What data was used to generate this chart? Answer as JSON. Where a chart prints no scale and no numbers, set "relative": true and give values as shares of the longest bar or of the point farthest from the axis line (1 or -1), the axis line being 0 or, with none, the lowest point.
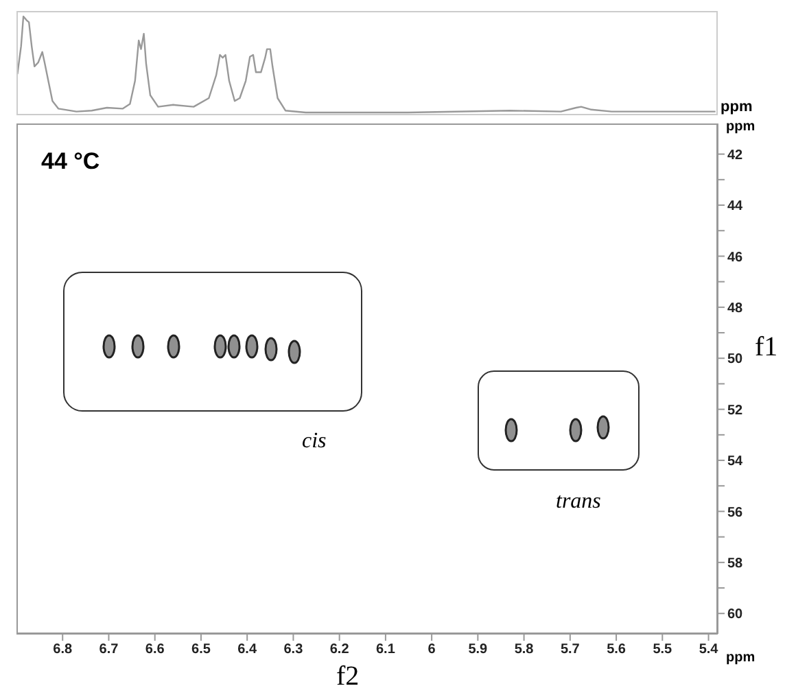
{
  "chart_data": [
    {
      "type": "line",
      "relative": true,
      "tick_labels": false,
      "xlim": [
        6.9,
        5.38
      ],
      "annotations": [
        "ppm"
      ],
      "series": [
        {
          "color": "#999999",
          "x": [
            6.898,
            6.89,
            6.885,
            6.878,
            6.873,
            6.867,
            6.861,
            6.853,
            6.844,
            6.839,
            6.831,
            6.822,
            6.809,
            6.77,
            6.737,
            6.704,
            6.67,
            6.654,
            6.643,
            6.635,
            6.63,
            6.624,
            6.619,
            6.61,
            6.593,
            6.56,
            6.516,
            6.483,
            6.467,
            6.459,
            6.453,
            6.447,
            6.439,
            6.427,
            6.416,
            6.403,
            6.394,
            6.387,
            6.381,
            6.37,
            6.361,
            6.357,
            6.35,
            6.345,
            6.334,
            6.317,
            6.273,
            6.051,
            5.83,
            5.72,
            5.687,
            5.676,
            5.654,
            5.61,
            5.385
          ],
          "values": [
            0.4,
            0.69,
            1,
            0.96,
            0.94,
            0.69,
            0.48,
            0.52,
            0.63,
            0.52,
            0.33,
            0.12,
            0.04,
            0.01,
            0.02,
            0.05,
            0.04,
            0.09,
            0.33,
            0.75,
            0.66,
            0.82,
            0.51,
            0.18,
            0.06,
            0.08,
            0.06,
            0.15,
            0.39,
            0.6,
            0.57,
            0.6,
            0.33,
            0.12,
            0.15,
            0.33,
            0.58,
            0.6,
            0.42,
            0.42,
            0.57,
            0.66,
            0.66,
            0.48,
            0.15,
            0.02,
            0,
            0,
            0.02,
            0.01,
            0.05,
            0.06,
            0.03,
            0.01,
            0.01
          ]
        }
      ]
    },
    {
      "type": "scatter",
      "xlabel": "f2",
      "ylabel": "f1",
      "xlim": [
        6.9,
        5.38
      ],
      "ylim": [
        60.8,
        40.8
      ],
      "xticks": [
        6.8,
        6.7,
        6.6,
        6.5,
        6.4,
        6.3,
        6.2,
        6.1,
        6.0,
        5.9,
        5.8,
        5.7,
        5.6,
        5.5,
        5.4
      ],
      "yticks": [
        42,
        {
          "value": 43,
          "label": null
        },
        44,
        {
          "value": 45,
          "label": null
        },
        46,
        {
          "value": 47,
          "label": null
        },
        48,
        {
          "value": 49,
          "label": null
        },
        50,
        {
          "value": 51,
          "label": null
        },
        52,
        {
          "value": 53,
          "label": null
        },
        54,
        {
          "value": 55,
          "label": null
        },
        56,
        {
          "value": 57,
          "label": null
        },
        58,
        {
          "value": 59,
          "label": null
        },
        60
      ],
      "annotations": [
        "44 °C",
        "cis",
        "trans",
        "ppm",
        "ppm"
      ],
      "series": [
        {
          "color": "#222222",
          "x": [
            6.7,
            6.637,
            6.56,
            6.46,
            6.43,
            6.39,
            6.35,
            6.3
          ],
          "values": [
            49.5,
            49.5,
            49.5,
            49.5,
            49.5,
            49.5,
            49.6,
            49.7
          ]
        },
        {
          "color": "#222222",
          "x": [
            5.83,
            5.69,
            5.63
          ],
          "values": [
            52.8,
            52.8,
            52.7
          ]
        }
      ]
    }
  ]
}
